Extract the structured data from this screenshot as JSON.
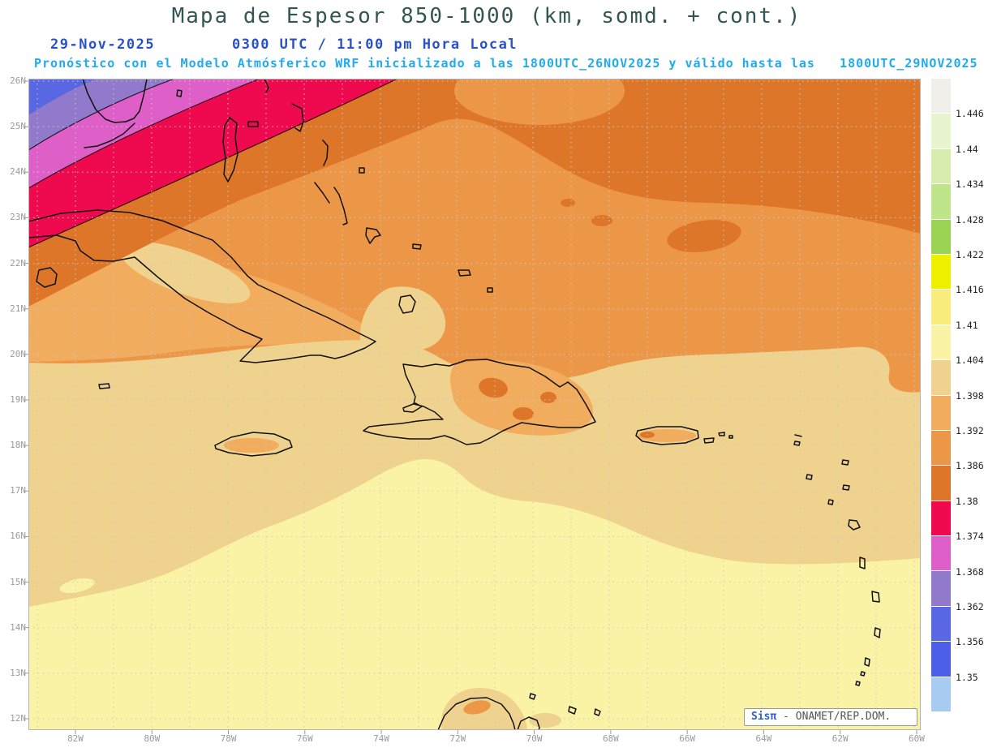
{
  "title": "Mapa de Espesor 850-1000 (km, somd. + cont.)",
  "header": {
    "date": "29-Nov-2025",
    "time": "0300 UTC / 11:00 pm Hora Local",
    "forecast": "Pronóstico con el Modelo Atmósferico WRF inicializado a las 1800UTC_26NOV2025 y válido hasta las   1800UTC_29NOV2025"
  },
  "axes": {
    "lat": [
      "26N",
      "25N",
      "24N",
      "23N",
      "22N",
      "21N",
      "20N",
      "19N",
      "18N",
      "17N",
      "16N",
      "15N",
      "14N",
      "13N",
      "12N"
    ],
    "lon": [
      "82W",
      "80W",
      "78W",
      "76W",
      "74W",
      "72W",
      "70W",
      "68W",
      "66W",
      "64W",
      "62W",
      "60W"
    ]
  },
  "legend": {
    "labels": [
      "1.446",
      "1.44",
      "1.434",
      "1.428",
      "1.422",
      "1.416",
      "1.41",
      "1.404",
      "1.398",
      "1.392",
      "1.386",
      "1.38",
      "1.374",
      "1.368",
      "1.362",
      "1.356",
      "1.35"
    ],
    "colors": [
      "#f0efea",
      "#e7f4cd",
      "#d6edae",
      "#bfe58b",
      "#9bd455",
      "#eef000",
      "#f8ec7c",
      "#faf2a4",
      "#efd28e",
      "#f2ac5e",
      "#ec9747",
      "#de7629",
      "#ef0a50",
      "#de5fc8",
      "#9179cb",
      "#5a67e3",
      "#4c5fe6",
      "#a8cbf2"
    ]
  },
  "map_colors": {
    "base_orange": "#ec9747",
    "light_orange": "#f2ac5e",
    "dark_orange": "#de7629",
    "crimson": "#ef0a50",
    "pink": "#de5fc8",
    "purple": "#9179cb",
    "blue": "#5a67e3",
    "khaki": "#efd28e",
    "pale_yellow": "#faf2a4"
  },
  "attribution": {
    "brand": "Sisπ",
    "text": " - ONAMET/REP.DOM."
  },
  "chart_data": {
    "type": "heatmap",
    "title": "Mapa de Espesor 850-1000 (km, somd. + cont.)",
    "units": "km",
    "levels": [
      1.35,
      1.356,
      1.362,
      1.368,
      1.374,
      1.38,
      1.386,
      1.392,
      1.398,
      1.404,
      1.41,
      1.416,
      1.422,
      1.428,
      1.434,
      1.44,
      1.446
    ],
    "lat_range": [
      12,
      26
    ],
    "lon_range_west": [
      83,
      60
    ],
    "field_summary": "Thickness near 1.404-1.41 km south of 17N, 1.398-1.404 km across 17-20N, 1.386-1.398 km north of 20N, decreasing northwest through 1.38, 1.374 (crimson band), 1.368 (pink), 1.362 (purple) to below 1.356 km (blue) in the far northwest corner"
  }
}
